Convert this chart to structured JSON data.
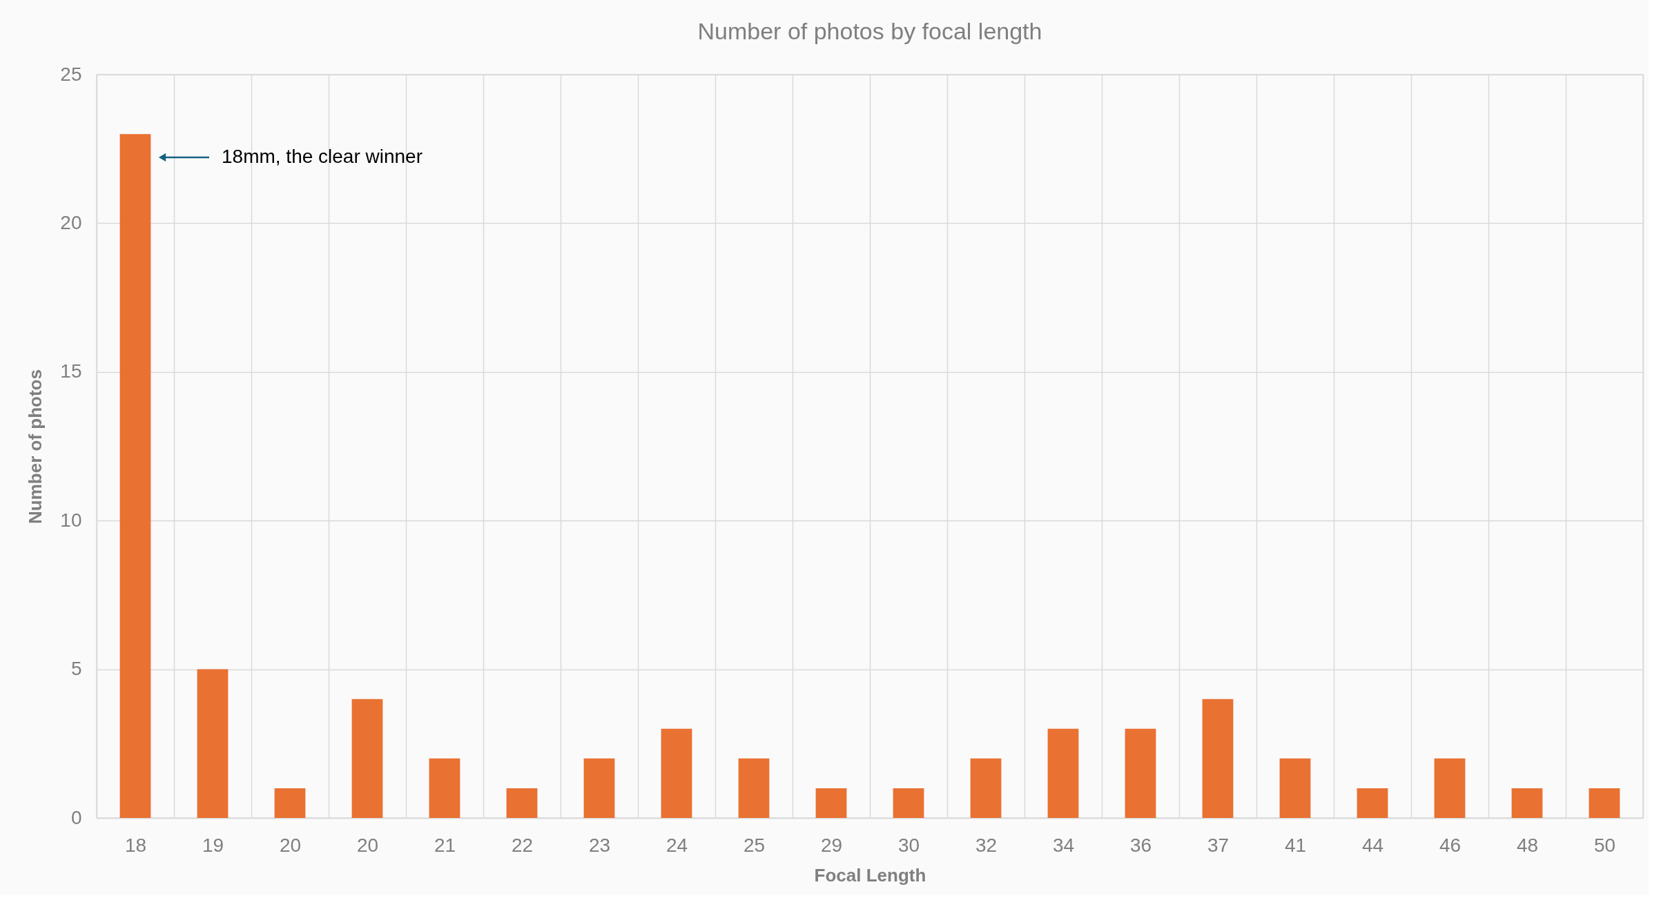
{
  "chart_data": {
    "type": "bar",
    "title": "Number of photos by focal length",
    "xlabel": "Focal Length",
    "ylabel": "Number of photos",
    "categories": [
      "18",
      "19",
      "20",
      "20",
      "21",
      "22",
      "23",
      "24",
      "25",
      "29",
      "30",
      "32",
      "34",
      "36",
      "37",
      "41",
      "44",
      "46",
      "48",
      "50"
    ],
    "values": [
      23,
      5,
      1,
      4,
      2,
      1,
      2,
      3,
      2,
      1,
      1,
      2,
      3,
      3,
      4,
      2,
      1,
      2,
      1,
      1
    ],
    "color": "#e97132",
    "ylim": [
      0,
      25
    ],
    "yticks": [
      0,
      5,
      10,
      15,
      20,
      25
    ],
    "grid": true,
    "annotations": [
      "18mm, the clear winner"
    ]
  }
}
